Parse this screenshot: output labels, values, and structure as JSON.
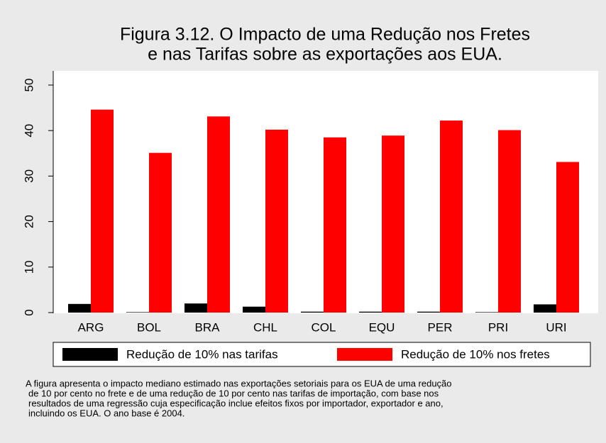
{
  "chart_data": {
    "type": "bar",
    "title": [
      "Figura 3.12. O Impacto de uma Redução nos Fretes",
      "e nas Tarifas sobre as exportações aos EUA."
    ],
    "categories": [
      "ARG",
      "BOL",
      "BRA",
      "CHL",
      "COL",
      "EQU",
      "PER",
      "PRI",
      "URI"
    ],
    "series": [
      {
        "name": "Redução de 10% nas tarifas",
        "color": "#000000",
        "values": [
          1.9,
          0.1,
          2.0,
          1.3,
          0.2,
          0.2,
          0.2,
          0.1,
          1.8
        ]
      },
      {
        "name": "Redução de 10% nos fretes",
        "color": "#ff0000",
        "values": [
          44.6,
          35.1,
          43.1,
          40.2,
          38.5,
          38.9,
          42.2,
          40.1,
          33.1
        ]
      }
    ],
    "ylim": [
      0,
      50
    ],
    "yticks": [
      0,
      10,
      20,
      30,
      40,
      50
    ],
    "grid": false,
    "legend": "bottom",
    "note": [
      "A figura apresenta o impacto mediano estimado nas exportações setoriais para os EUA de uma redução",
      "de 10 por cento no frete e de uma redução de 10 por cento nas tarifas de importação, com base nos",
      "resultados de uma regressão cuja especificação inclue efeitos fixos por importador, exportador e ano,",
      "incluindo os EUA. O ano base é 2004."
    ]
  }
}
